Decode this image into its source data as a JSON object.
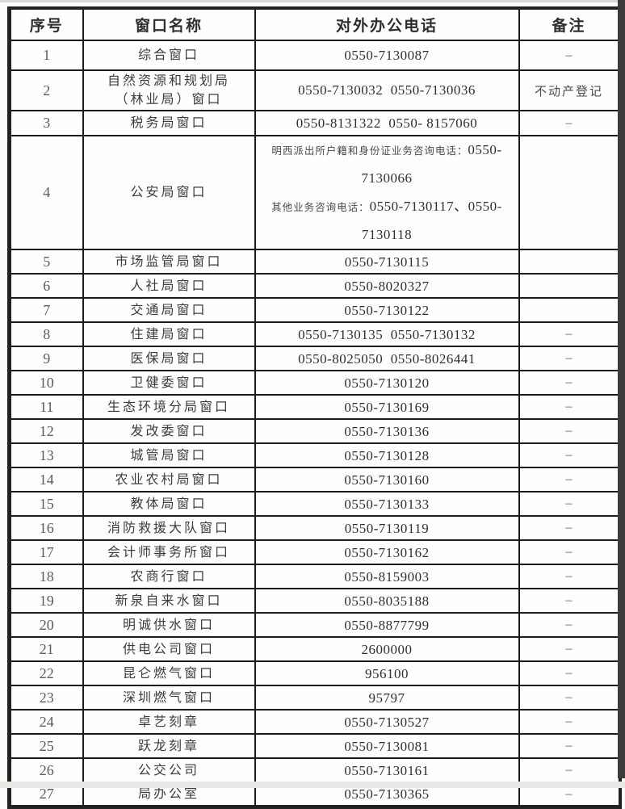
{
  "colors": {
    "border": "#1c1c1a",
    "text": "#3c3c3a",
    "scan_edge_band": "#3b3b3b"
  },
  "table": {
    "headers": [
      "序号",
      "窗口名称",
      "对外办公电话",
      "备注"
    ],
    "rows": [
      {
        "seq": "1",
        "name": "综合窗口",
        "phone": "0550-7130087",
        "remark": "–"
      },
      {
        "seq": "2",
        "name": "自然资源和规划局\n（林业局）窗口",
        "phone": "0550-7130032  0550-7130036",
        "remark": "不动产登记"
      },
      {
        "seq": "3",
        "name": "税务局窗口",
        "phone": "0550-8131322  0550- 8157060",
        "remark": "–"
      },
      {
        "seq": "4",
        "name": "公安局窗口",
        "phone_parts": [
          {
            "label": "明西派出所户籍和身份证业务咨询电话：",
            "number": "0550-7130066"
          },
          {
            "label": "其他业务咨询电话：",
            "number": "0550-7130117、0550-7130118"
          }
        ],
        "remark": ""
      },
      {
        "seq": "5",
        "name": "市场监管局窗口",
        "phone": "0550-7130115",
        "remark": ""
      },
      {
        "seq": "6",
        "name": "人社局窗口",
        "phone": "0550-8020327",
        "remark": ""
      },
      {
        "seq": "7",
        "name": "交通局窗口",
        "phone": "0550-7130122",
        "remark": ""
      },
      {
        "seq": "8",
        "name": "住建局窗口",
        "phone": "0550-7130135  0550-7130132",
        "remark": "–"
      },
      {
        "seq": "9",
        "name": "医保局窗口",
        "phone": "0550-8025050  0550-8026441",
        "remark": "–"
      },
      {
        "seq": "10",
        "name": "卫健委窗口",
        "phone": "0550-7130120",
        "remark": "–"
      },
      {
        "seq": "11",
        "name": "生态环境分局窗口",
        "phone": "0550-7130169",
        "remark": "–"
      },
      {
        "seq": "12",
        "name": "发改委窗口",
        "phone": "0550-7130136",
        "remark": "–"
      },
      {
        "seq": "13",
        "name": "城管局窗口",
        "phone": "0550-7130128",
        "remark": "–"
      },
      {
        "seq": "14",
        "name": "农业农村局窗口",
        "phone": "0550-7130160",
        "remark": "–"
      },
      {
        "seq": "15",
        "name": "教体局窗口",
        "phone": "0550-7130133",
        "remark": "–"
      },
      {
        "seq": "16",
        "name": "消防救援大队窗口",
        "phone": "0550-7130119",
        "remark": "–"
      },
      {
        "seq": "17",
        "name": "会计师事务所窗口",
        "phone": "0550-7130162",
        "remark": "–"
      },
      {
        "seq": "18",
        "name": "农商行窗口",
        "phone": "0550-8159003",
        "remark": "–"
      },
      {
        "seq": "19",
        "name": "新泉自来水窗口",
        "phone": "0550-8035188",
        "remark": "–"
      },
      {
        "seq": "20",
        "name": "明诚供水窗口",
        "phone": "0550-8877799",
        "remark": "–"
      },
      {
        "seq": "21",
        "name": "供电公司窗口",
        "phone": "2600000",
        "remark": "–"
      },
      {
        "seq": "22",
        "name": "昆仑燃气窗口",
        "phone": "956100",
        "remark": "–"
      },
      {
        "seq": "23",
        "name": "深圳燃气窗口",
        "phone": "95797",
        "remark": "–"
      },
      {
        "seq": "24",
        "name": "卓艺刻章",
        "phone": "0550-7130527",
        "remark": "–"
      },
      {
        "seq": "25",
        "name": "跃龙刻章",
        "phone": "0550-7130081",
        "remark": "–"
      },
      {
        "seq": "26",
        "name": "公交公司",
        "phone": "0550-7130161",
        "remark": "–"
      },
      {
        "seq": "27",
        "name": "局办公室",
        "phone": "0550-7130365",
        "remark": "–"
      }
    ]
  }
}
